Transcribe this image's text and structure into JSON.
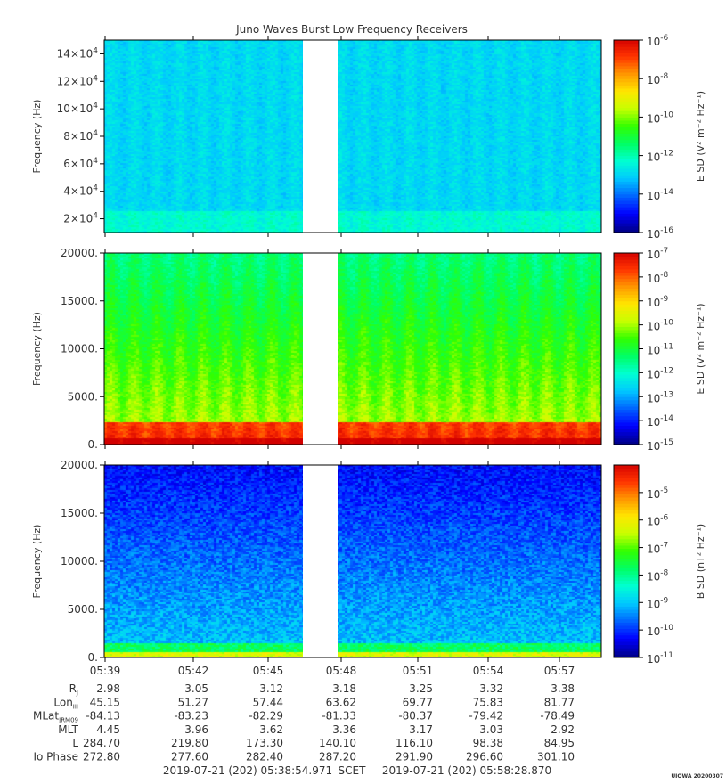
{
  "title": "Juno Waves Burst Low Frequency Receivers",
  "credit": "UIOWA 20200307",
  "colors": {
    "colormap": [
      "#00008c",
      "#0000ff",
      "#0064ff",
      "#00c8ff",
      "#00ffd2",
      "#00ff64",
      "#32ff00",
      "#c8ff00",
      "#ffe600",
      "#ff9600",
      "#ff3200",
      "#d20000"
    ]
  },
  "time_axis": {
    "ticks": [
      "05:39",
      "05:42",
      "05:45",
      "05:48",
      "05:51",
      "05:54",
      "05:57"
    ],
    "start_label": "2019-07-21 (202) 05:38:54.971",
    "scet_label": "SCET",
    "end_label": "2019-07-21 (202) 05:58:28.870"
  },
  "data_gap": {
    "start": "05:46:10",
    "end": "05:47:50"
  },
  "ephemeris": [
    {
      "label": "R",
      "sub": "J",
      "values": [
        "2.98",
        "3.05",
        "3.12",
        "3.18",
        "3.25",
        "3.32",
        "3.38"
      ]
    },
    {
      "label": "Lon",
      "sub": "III",
      "values": [
        "45.15",
        "51.27",
        "57.44",
        "63.62",
        "69.77",
        "75.83",
        "81.77"
      ]
    },
    {
      "label": "MLat",
      "sub": "JRM09",
      "values": [
        "-84.13",
        "-83.23",
        "-82.29",
        "-81.33",
        "-80.37",
        "-79.42",
        "-78.49"
      ]
    },
    {
      "label": "MLT",
      "sub": "",
      "values": [
        "4.45",
        "3.96",
        "3.62",
        "3.36",
        "3.17",
        "3.03",
        "2.92"
      ]
    },
    {
      "label": "L",
      "sub": "",
      "values": [
        "284.70",
        "219.80",
        "173.30",
        "140.10",
        "116.10",
        "98.38",
        "84.95"
      ]
    },
    {
      "label": "Io Phase",
      "sub": "",
      "values": [
        "272.80",
        "277.60",
        "282.40",
        "287.20",
        "291.90",
        "296.60",
        "301.10"
      ]
    }
  ],
  "chart_data": [
    {
      "type": "heatmap",
      "ylabel": "Frequency (Hz)",
      "ylim": [
        10000,
        150000
      ],
      "y_ticks": [
        {
          "value": 20000,
          "mantissa": "2×10",
          "exp": "4"
        },
        {
          "value": 40000,
          "mantissa": "4×10",
          "exp": "4"
        },
        {
          "value": 60000,
          "mantissa": "6×10",
          "exp": "4"
        },
        {
          "value": 80000,
          "mantissa": "8×10",
          "exp": "4"
        },
        {
          "value": 100000,
          "mantissa": "10×10",
          "exp": "4"
        },
        {
          "value": 120000,
          "mantissa": "12×10",
          "exp": "4"
        },
        {
          "value": 140000,
          "mantissa": "14×10",
          "exp": "4"
        }
      ],
      "colorbar": {
        "label": "E SD (V² m⁻² Hz⁻¹)",
        "log_range": [
          -16,
          -6
        ],
        "tick_exps": [
          "-16",
          "-14",
          "-12",
          "-10",
          "-8",
          "-6"
        ]
      },
      "description_levels": {
        "bulk_log": -13,
        "low_freq_log": -12
      }
    },
    {
      "type": "heatmap",
      "ylabel": "Frequency (Hz)",
      "ylim": [
        0,
        20000
      ],
      "y_ticks": [
        {
          "value": 0,
          "label": "0."
        },
        {
          "value": 5000,
          "label": "5000."
        },
        {
          "value": 10000,
          "label": "10000."
        },
        {
          "value": 15000,
          "label": "15000."
        },
        {
          "value": 20000,
          "label": "20000."
        }
      ],
      "colorbar": {
        "label": "E SD (V² m⁻² Hz⁻¹)",
        "log_range": [
          -15,
          -7
        ],
        "tick_exps": [
          "-15",
          "-14",
          "-13",
          "-12",
          "-11",
          "-10",
          "-9",
          "-8",
          "-7"
        ]
      },
      "description_levels": {
        "bulk_log": -11.5,
        "low_freq_log": -8
      }
    },
    {
      "type": "heatmap",
      "ylabel": "Frequency (Hz)",
      "ylim": [
        0,
        20000
      ],
      "y_ticks": [
        {
          "value": 0,
          "label": "0."
        },
        {
          "value": 5000,
          "label": "5000."
        },
        {
          "value": 10000,
          "label": "10000."
        },
        {
          "value": 15000,
          "label": "15000."
        },
        {
          "value": 20000,
          "label": "20000."
        }
      ],
      "colorbar": {
        "label": "B SD (nT² Hz⁻¹)",
        "log_range": [
          -11,
          -4
        ],
        "tick_exps": [
          "-11",
          "-10",
          "-9",
          "-8",
          "-7",
          "-6",
          "-5"
        ]
      },
      "description_levels": {
        "bulk_log": -10.3,
        "low_freq_log": -8
      }
    }
  ]
}
